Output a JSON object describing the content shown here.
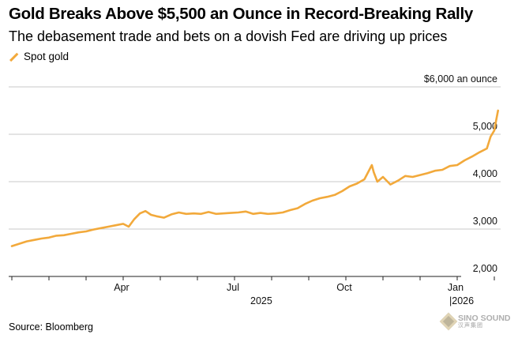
{
  "header": {
    "title": "Gold Breaks Above $5,500 an Ounce in Record-Breaking Rally",
    "subtitle": "The debasement trade and bets on a dovish Fed are driving up prices"
  },
  "legend": {
    "label": "Spot gold",
    "color": "#f2a93b"
  },
  "footer": {
    "source": "Source: Bloomberg"
  },
  "watermark": {
    "text": "SINO SOUND",
    "subtext": "汉声集团"
  },
  "chart_data": {
    "type": "line",
    "title": "Gold Breaks Above $5,500 an Ounce in Record-Breaking Rally",
    "subtitle": "The debasement trade and bets on a dovish Fed are driving up prices",
    "xlabel": "",
    "ylabel": "$ an ounce",
    "y_axis_title": "$6,000 an ounce",
    "ylim": [
      2000,
      6000
    ],
    "y_ticks": [
      {
        "value": 6000,
        "label": "$6,000 an ounce"
      },
      {
        "value": 5000,
        "label": "5,000"
      },
      {
        "value": 4000,
        "label": "4,000"
      },
      {
        "value": 3000,
        "label": "3,000"
      },
      {
        "value": 2000,
        "label": "2,000"
      }
    ],
    "x_range": [
      "2025-01-01",
      "2026-02-01"
    ],
    "x_ticks": [
      {
        "label": "Apr",
        "month_index": 3
      },
      {
        "label": "Jul",
        "month_index": 6
      },
      {
        "label": "Oct",
        "month_index": 9
      },
      {
        "label": "Jan",
        "month_index": 12
      }
    ],
    "year_labels": [
      {
        "label": "2025",
        "month_index": 6
      },
      {
        "label": "|2026",
        "month_index": 12
      }
    ],
    "grid": true,
    "series": [
      {
        "name": "Spot gold",
        "color": "#f2a93b",
        "x_month_index": [
          0.0,
          0.2,
          0.4,
          0.6,
          0.8,
          1.0,
          1.2,
          1.4,
          1.6,
          1.8,
          2.0,
          2.2,
          2.4,
          2.6,
          2.8,
          3.0,
          3.15,
          3.3,
          3.45,
          3.6,
          3.75,
          3.9,
          4.1,
          4.3,
          4.5,
          4.7,
          4.9,
          5.1,
          5.3,
          5.5,
          5.7,
          5.9,
          6.1,
          6.3,
          6.5,
          6.7,
          6.9,
          7.1,
          7.3,
          7.5,
          7.7,
          7.9,
          8.1,
          8.3,
          8.5,
          8.7,
          8.9,
          9.1,
          9.3,
          9.5,
          9.6,
          9.7,
          9.75,
          9.85,
          10.0,
          10.2,
          10.4,
          10.6,
          10.8,
          11.0,
          11.2,
          11.4,
          11.6,
          11.8,
          12.0,
          12.2,
          12.4,
          12.6,
          12.8,
          12.9,
          13.0,
          13.05,
          13.1
        ],
        "values": [
          2640,
          2690,
          2740,
          2770,
          2800,
          2820,
          2860,
          2870,
          2900,
          2930,
          2950,
          2990,
          3020,
          3050,
          3080,
          3110,
          3050,
          3210,
          3330,
          3380,
          3300,
          3270,
          3240,
          3310,
          3350,
          3320,
          3330,
          3320,
          3360,
          3320,
          3330,
          3340,
          3350,
          3370,
          3320,
          3340,
          3320,
          3330,
          3350,
          3400,
          3440,
          3530,
          3600,
          3650,
          3680,
          3720,
          3800,
          3900,
          3960,
          4050,
          4200,
          4350,
          4200,
          4000,
          4100,
          3940,
          4020,
          4120,
          4100,
          4140,
          4180,
          4230,
          4250,
          4330,
          4350,
          4450,
          4530,
          4620,
          4700,
          4950,
          5080,
          5300,
          5500
        ]
      }
    ]
  }
}
